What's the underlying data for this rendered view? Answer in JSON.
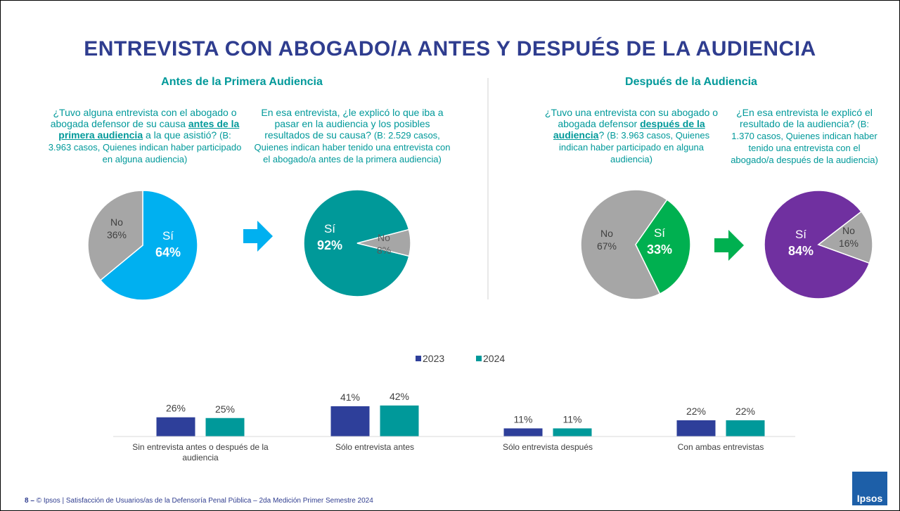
{
  "title": "ENTREVISTA CON ABOGADO/A ANTES Y DESPUÉS DE LA AUDIENCIA",
  "sections": [
    "Antes de la Primera Audiencia",
    "Después de la Audiencia"
  ],
  "footer": {
    "page": "8 –",
    "text": "© Ipsos | Satisfacción de Usuarios/as de la Defensoría Penal Pública – 2da Medición Primer Semestre 2024"
  },
  "logo": "Ipsos",
  "chart_data": [
    {
      "type": "pie",
      "question": [
        "¿Tuvo alguna entrevista con el abogado o abogada defensor de su causa ",
        "antes de la primera audiencia",
        " a la que asistió? ",
        "(B: 3.963 casos, Quienes indican haber participado en alguna audiencia)"
      ],
      "categories": [
        "Sí",
        "No"
      ],
      "values": [
        64,
        36
      ],
      "value_labels": [
        "64%",
        "36%"
      ],
      "colors": [
        "#00b0f0",
        "#a6a6a6"
      ]
    },
    {
      "type": "pie",
      "question": [
        "En esa entrevista, ¿le explicó lo que iba a pasar en la audiencia y los posibles resultados de su causa? ",
        "(B: 2.529 casos, Quienes indican haber tenido una entrevista con el abogado/a antes de la primera audiencia)"
      ],
      "categories": [
        "Sí",
        "No"
      ],
      "values": [
        92,
        8
      ],
      "value_labels": [
        "92%",
        "8%"
      ],
      "colors": [
        "#009999",
        "#a6a6a6"
      ]
    },
    {
      "type": "pie",
      "question": [
        "¿Tuvo una entrevista con su abogado o abogada defensor ",
        "después de la audiencia",
        "? ",
        "(B: 3.963 casos, Quienes indican haber participado en alguna audiencia)"
      ],
      "categories": [
        "Sí",
        "No"
      ],
      "values": [
        33,
        67
      ],
      "value_labels": [
        "33%",
        "67%"
      ],
      "colors": [
        "#00b050",
        "#a6a6a6"
      ]
    },
    {
      "type": "pie",
      "question": [
        "¿En esa entrevista le explicó el resultado de la audiencia? ",
        "(B: 1.370 casos, Quienes indican haber tenido una entrevista con el abogado/a después de la audiencia)"
      ],
      "categories": [
        "Sí",
        "No"
      ],
      "values": [
        84,
        16
      ],
      "value_labels": [
        "84%",
        "16%"
      ],
      "colors": [
        "#7030a0",
        "#a6a6a6"
      ]
    },
    {
      "type": "bar",
      "categories": [
        "Sin entrevista antes o después de la audiencia",
        "Sólo entrevista antes",
        "Sólo entrevista después",
        "Con ambas entrevistas"
      ],
      "series": [
        {
          "name": "2023",
          "color": "#2e3f9a",
          "values": [
            26,
            41,
            11,
            22
          ],
          "value_labels": [
            "26%",
            "41%",
            "11%",
            "22%"
          ]
        },
        {
          "name": "2024",
          "color": "#00999a",
          "values": [
            25,
            42,
            11,
            22
          ],
          "value_labels": [
            "25%",
            "42%",
            "11%",
            "22%"
          ]
        }
      ]
    }
  ]
}
